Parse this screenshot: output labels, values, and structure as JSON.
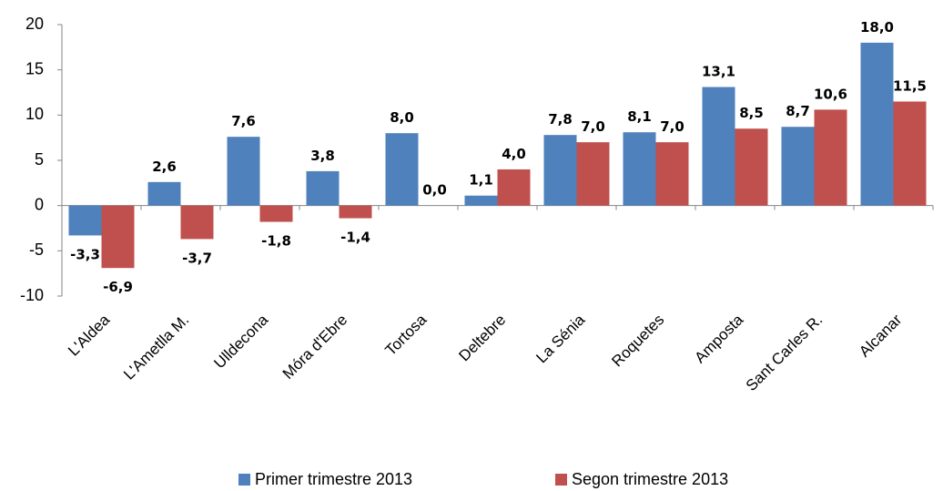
{
  "chart_data": {
    "type": "bar",
    "categories": [
      "L'Aldea",
      "L'Ametlla M.",
      "Ulldecona",
      "Móra d'Ebre",
      "Tortosa",
      "Deltebre",
      "La Sénia",
      "Roquetes",
      "Amposta",
      "Sant Carles R.",
      "Alcanar"
    ],
    "series": [
      {
        "name": "Primer trimestre 2013",
        "color": "#4f81bd",
        "values": [
          -3.3,
          2.6,
          7.6,
          3.8,
          8.0,
          1.1,
          7.8,
          8.1,
          13.1,
          8.7,
          18.0
        ],
        "value_labels": [
          "-3,3",
          "2,6",
          "7,6",
          "3,8",
          "8,0",
          "1,1",
          "7,8",
          "8,1",
          "13,1",
          "8,7",
          "18,0"
        ]
      },
      {
        "name": "Segon trimestre 2013",
        "color": "#c0504d",
        "values": [
          -6.9,
          -3.7,
          -1.8,
          -1.4,
          0.0,
          4.0,
          7.0,
          7.0,
          8.5,
          10.6,
          11.5
        ],
        "value_labels": [
          "-6,9",
          "-3,7",
          "-1,8",
          "-1,4",
          "0,0",
          "4,0",
          "7,0",
          "7,0",
          "8,5",
          "10,6",
          "11,5"
        ]
      }
    ],
    "ylim": [
      -10,
      20
    ],
    "yticks": [
      -10,
      -5,
      0,
      5,
      10,
      15,
      20
    ],
    "grid": false,
    "legend": "bottom"
  }
}
